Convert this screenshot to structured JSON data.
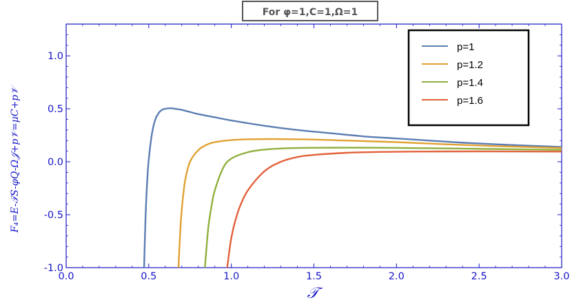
{
  "chart_data": {
    "type": "line",
    "title": "For φ=1,C=1,Ω=1",
    "xlabel": "𝒯",
    "ylabel": "F₄=E-𝒯S-φQ-Ω𝒥+p𝒱=μC+p𝒱",
    "xlim": [
      0.0,
      3.0
    ],
    "ylim": [
      -1.0,
      1.3
    ],
    "xticks": [
      "0.0",
      "0.5",
      "1.0",
      "1.5",
      "2.0",
      "2.5",
      "3.0"
    ],
    "yticks": [
      "-1.0",
      "-0.5",
      "0.0",
      "0.5",
      "1.0"
    ],
    "legend_position": "top-right",
    "series": [
      {
        "name": "p=1",
        "color": "#5b7db3",
        "x": [
          0.472,
          0.48,
          0.49,
          0.5,
          0.52,
          0.54,
          0.56,
          0.58,
          0.6,
          0.63,
          0.66,
          0.7,
          0.75,
          0.8,
          0.9,
          1.0,
          1.2,
          1.4,
          1.6,
          1.8,
          2.0,
          2.2,
          2.4,
          2.6,
          2.8,
          3.0
        ],
        "y": [
          -1.0,
          -0.55,
          -0.2,
          0.02,
          0.27,
          0.4,
          0.46,
          0.49,
          0.5,
          0.505,
          0.5,
          0.49,
          0.47,
          0.45,
          0.42,
          0.39,
          0.34,
          0.3,
          0.27,
          0.24,
          0.22,
          0.2,
          0.18,
          0.165,
          0.152,
          0.14
        ]
      },
      {
        "name": "p=1.2",
        "color": "#e0a030",
        "x": [
          0.68,
          0.69,
          0.7,
          0.72,
          0.75,
          0.8,
          0.85,
          0.9,
          1.0,
          1.1,
          1.2,
          1.3,
          1.5,
          1.7,
          2.0,
          2.3,
          2.6,
          3.0
        ],
        "y": [
          -1.0,
          -0.68,
          -0.45,
          -0.18,
          0.0,
          0.11,
          0.16,
          0.185,
          0.205,
          0.212,
          0.214,
          0.214,
          0.21,
          0.2,
          0.185,
          0.165,
          0.148,
          0.13
        ]
      },
      {
        "name": "p=1.4",
        "color": "#8fb03c",
        "x": [
          0.84,
          0.86,
          0.88,
          0.9,
          0.95,
          1.0,
          1.1,
          1.2,
          1.3,
          1.4,
          1.6,
          1.8,
          2.0,
          2.3,
          2.6,
          3.0
        ],
        "y": [
          -1.0,
          -0.63,
          -0.42,
          -0.27,
          -0.06,
          0.03,
          0.09,
          0.115,
          0.125,
          0.13,
          0.133,
          0.133,
          0.131,
          0.126,
          0.12,
          0.112
        ]
      },
      {
        "name": "p=1.6",
        "color": "#e2603a",
        "x": [
          0.975,
          0.99,
          1.0,
          1.02,
          1.05,
          1.1,
          1.2,
          1.3,
          1.4,
          1.5,
          1.7,
          1.9,
          2.2,
          2.5,
          2.8,
          3.0
        ],
        "y": [
          -1.0,
          -0.82,
          -0.72,
          -0.58,
          -0.43,
          -0.27,
          -0.09,
          0.0,
          0.045,
          0.065,
          0.085,
          0.093,
          0.097,
          0.098,
          0.097,
          0.096
        ]
      }
    ]
  }
}
